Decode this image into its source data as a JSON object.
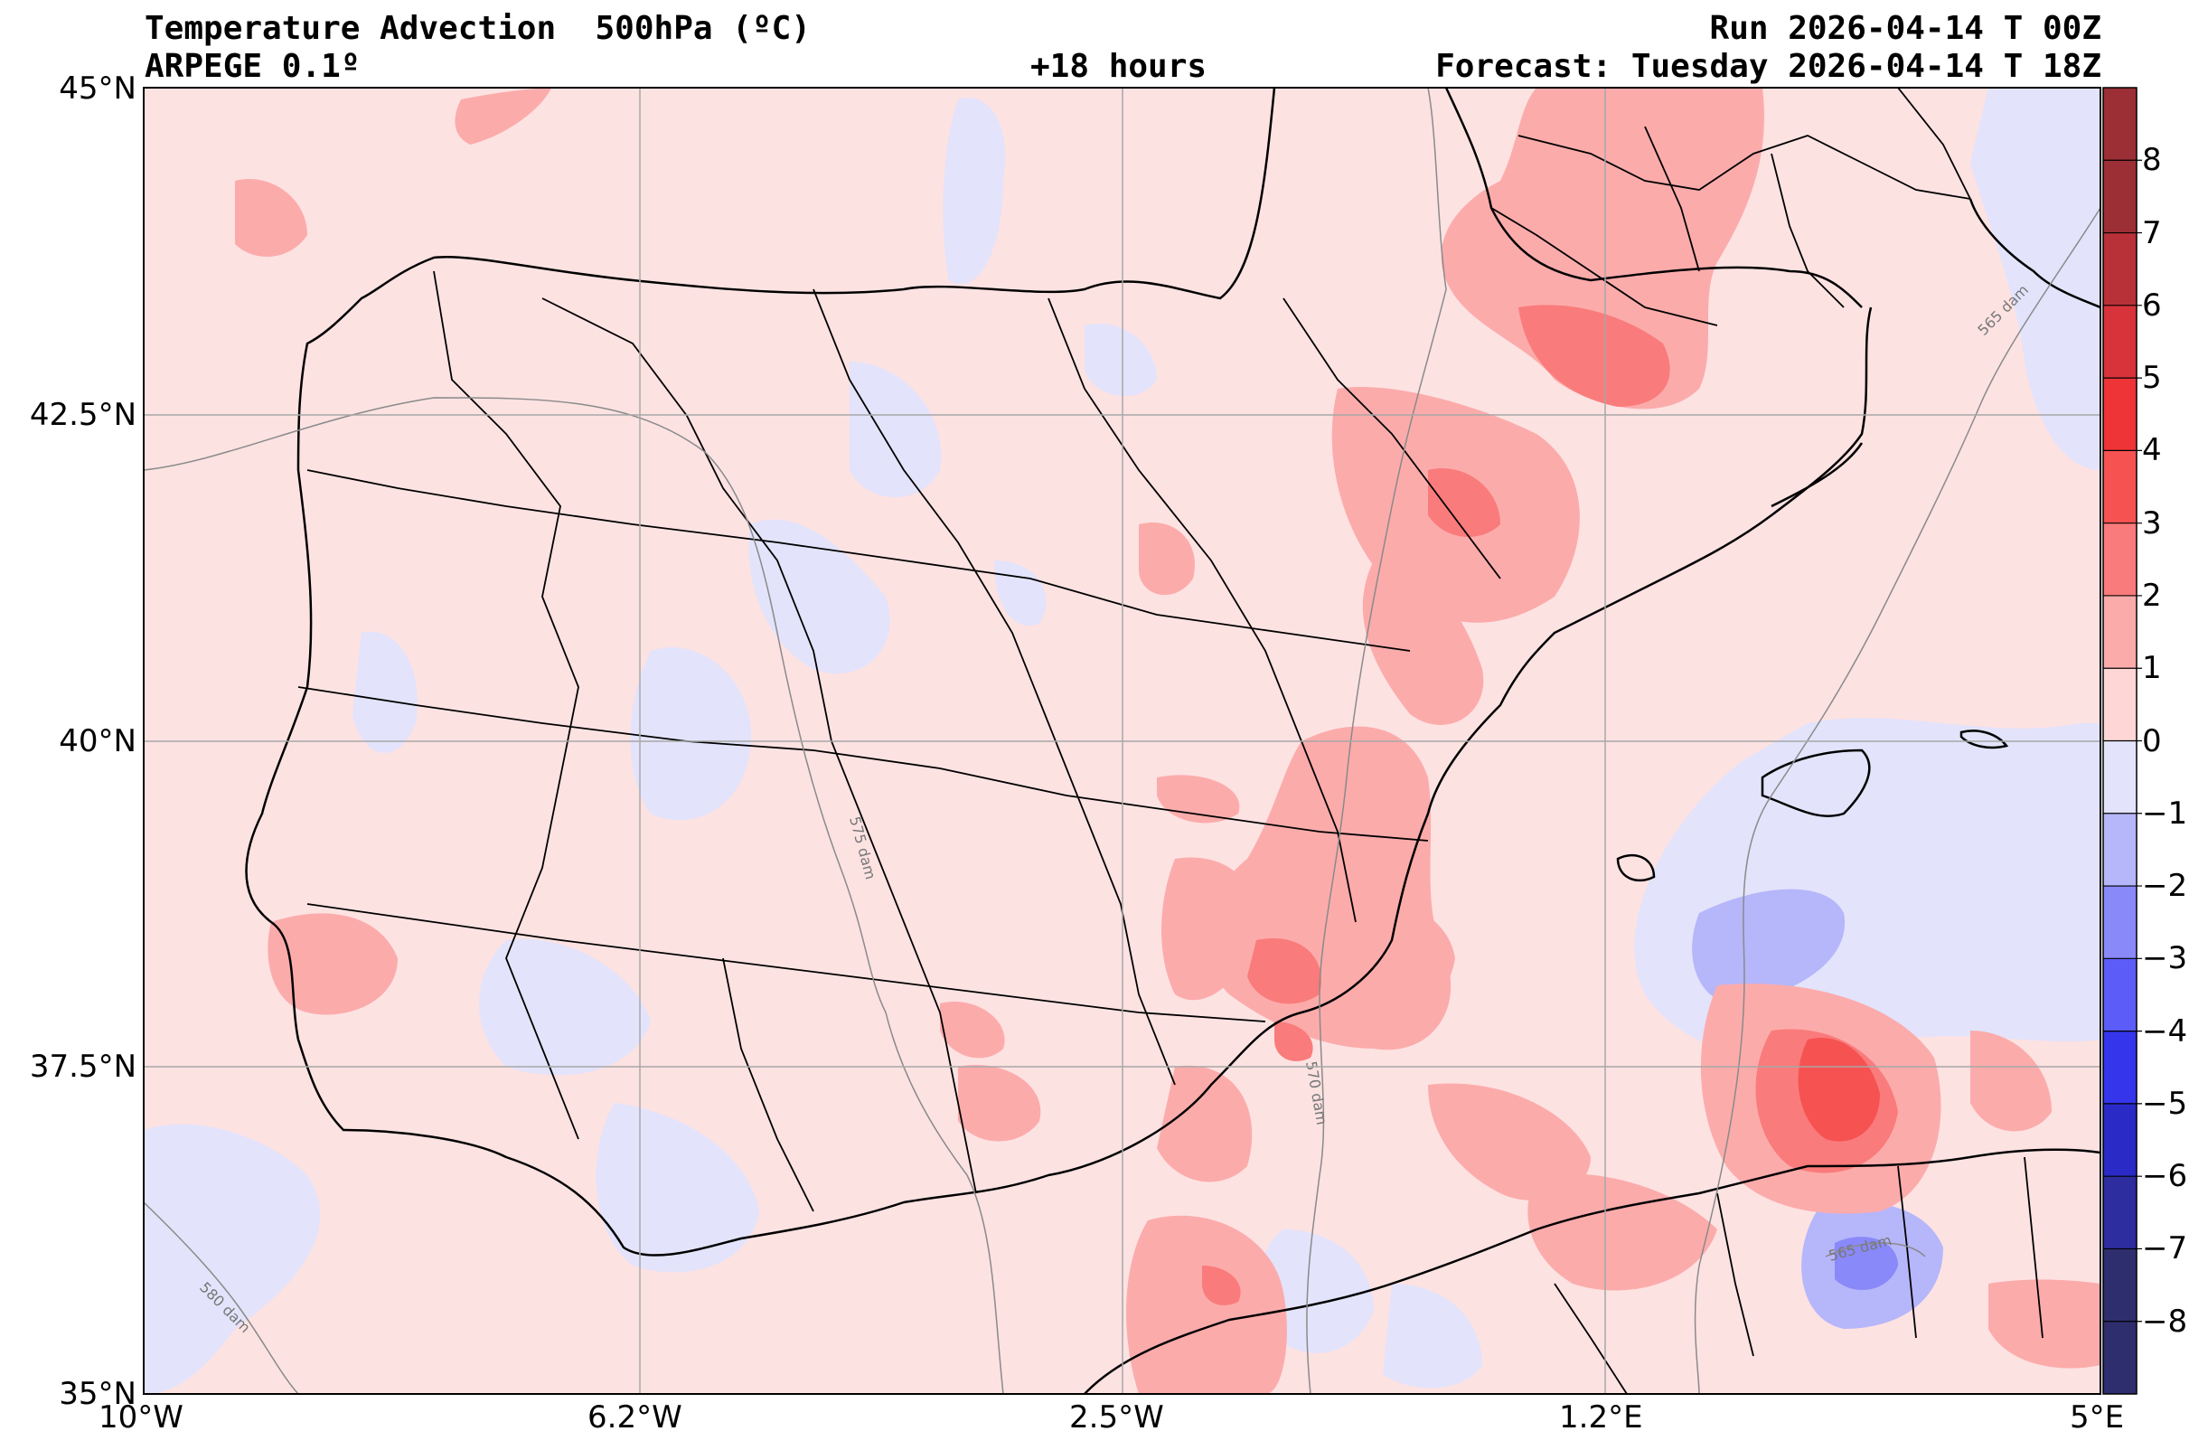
{
  "header": {
    "title": "Temperature Advection  500hPa (ºC)",
    "model": "ARPEGE 0.1º",
    "lead_time": "+18 hours",
    "run": "Run 2026-04-14 T 00Z",
    "forecast": "Forecast: Tuesday 2026-04-14 T 18Z"
  },
  "axes": {
    "lat_labels": [
      "45°N",
      "42.5°N",
      "40°N",
      "37.5°N",
      "35°N"
    ],
    "lon_labels": [
      "10°W",
      "6.2°W",
      "2.5°W",
      "1.2°E",
      "5°E"
    ]
  },
  "colorbar": {
    "labels": [
      "8",
      "7",
      "6",
      "5",
      "4",
      "3",
      "2",
      "1",
      "0",
      "−1",
      "−2",
      "−3",
      "−4",
      "−5",
      "−6",
      "−7",
      "−8"
    ],
    "colors": [
      "#9b2f35",
      "#b83038",
      "#d8333a",
      "#ee3436",
      "#f65252",
      "#fa7b7b",
      "#fcabab",
      "#fed6d6",
      "#fde2e2",
      "#e3e3fb",
      "#b6b6fb",
      "#8989fa",
      "#5c5cf8",
      "#3535ec",
      "#2a2ac6",
      "#2d2d9f",
      "#2e2e6e"
    ]
  },
  "contour_labels": [
    "565 dam",
    "575 dam",
    "570 dam",
    "580 dam",
    "565 dam"
  ]
}
